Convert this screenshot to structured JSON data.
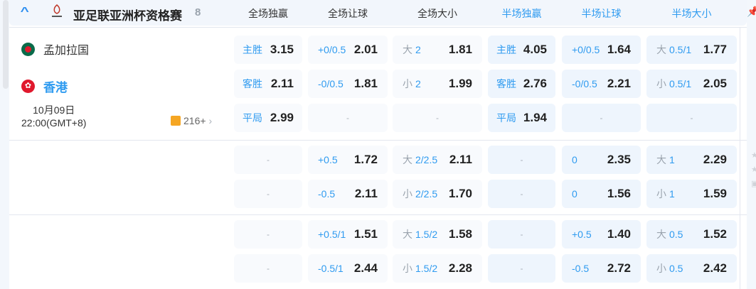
{
  "league": {
    "title": "亚足联亚洲杯资格赛",
    "count": "8"
  },
  "columns": [
    {
      "label": "全场独赢",
      "color": "#333333"
    },
    {
      "label": "全场让球",
      "color": "#333333"
    },
    {
      "label": "全场大小",
      "color": "#333333"
    },
    {
      "label": "半场独赢",
      "color": "#2f9bf0"
    },
    {
      "label": "半场让球",
      "color": "#2f9bf0"
    },
    {
      "label": "半场大小",
      "color": "#2f9bf0"
    }
  ],
  "match": {
    "home": "孟加拉国",
    "away": "香港",
    "date": "10月09日",
    "time": "22:00(GMT+8)",
    "more": "216+"
  },
  "groups": [
    {
      "rows": [
        [
          {
            "line": "主胜",
            "odds": "3.15"
          },
          {
            "line": "+0/0.5",
            "odds": "2.01"
          },
          {
            "pre": "大",
            "line": "2",
            "odds": "1.81"
          },
          {
            "line": "主胜",
            "odds": "4.05"
          },
          {
            "line": "+0/0.5",
            "odds": "1.64"
          },
          {
            "pre": "大",
            "line": "0.5/1",
            "odds": "1.77"
          }
        ],
        [
          {
            "line": "客胜",
            "odds": "2.11"
          },
          {
            "line": "-0/0.5",
            "odds": "1.81"
          },
          {
            "pre": "小",
            "line": "2",
            "odds": "1.99"
          },
          {
            "line": "客胜",
            "odds": "2.76"
          },
          {
            "line": "-0/0.5",
            "odds": "2.21"
          },
          {
            "pre": "小",
            "line": "0.5/1",
            "odds": "2.05"
          }
        ],
        [
          {
            "line": "平局",
            "odds": "2.99"
          },
          {
            "dash": "-"
          },
          {
            "dash": "-"
          },
          {
            "line": "平局",
            "odds": "1.94"
          },
          {
            "dash": "-"
          },
          {
            "dash": "-"
          }
        ]
      ]
    },
    {
      "rows": [
        [
          {
            "dash": "-"
          },
          {
            "line": "+0.5",
            "odds": "1.72"
          },
          {
            "pre": "大",
            "line": "2/2.5",
            "odds": "2.11"
          },
          {
            "dash": "-"
          },
          {
            "line": "0",
            "odds": "2.35"
          },
          {
            "pre": "大",
            "line": "1",
            "odds": "2.29"
          }
        ],
        [
          {
            "dash": "-"
          },
          {
            "line": "-0.5",
            "odds": "2.11"
          },
          {
            "pre": "小",
            "line": "2/2.5",
            "odds": "1.70"
          },
          {
            "dash": "-"
          },
          {
            "line": "0",
            "odds": "1.56"
          },
          {
            "pre": "小",
            "line": "1",
            "odds": "1.59"
          }
        ]
      ]
    },
    {
      "rows": [
        [
          {
            "dash": "-"
          },
          {
            "line": "+0.5/1",
            "odds": "1.51"
          },
          {
            "pre": "大",
            "line": "1.5/2",
            "odds": "1.58"
          },
          {
            "dash": "-"
          },
          {
            "line": "+0.5",
            "odds": "1.40"
          },
          {
            "pre": "大",
            "line": "0.5",
            "odds": "1.52"
          }
        ],
        [
          {
            "dash": "-"
          },
          {
            "line": "-0.5/1",
            "odds": "2.44"
          },
          {
            "pre": "小",
            "line": "1.5/2",
            "odds": "2.28"
          },
          {
            "dash": "-"
          },
          {
            "line": "-0.5",
            "odds": "2.72"
          },
          {
            "pre": "小",
            "line": "0.5",
            "odds": "2.42"
          }
        ]
      ]
    }
  ]
}
